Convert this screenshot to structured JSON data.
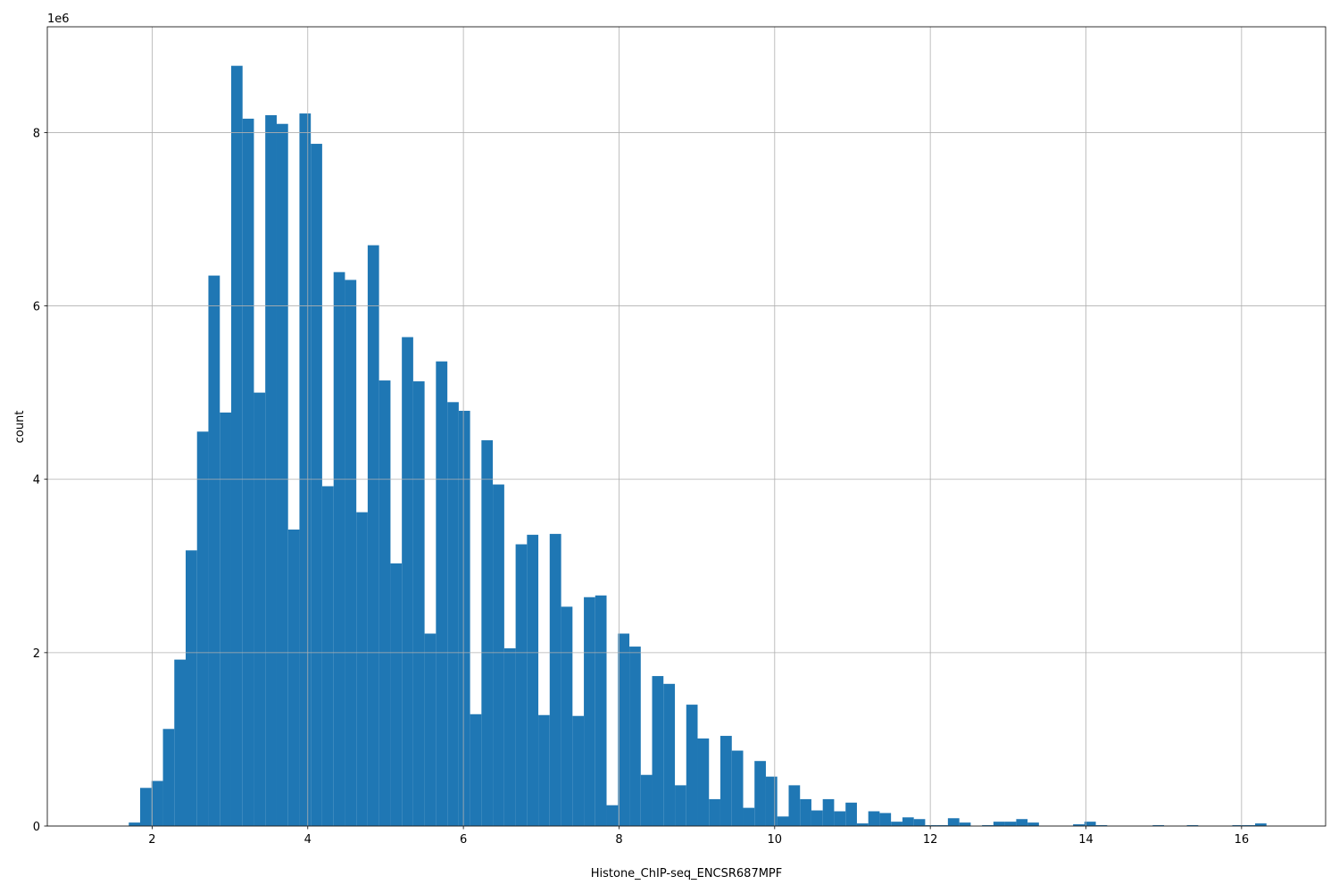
{
  "chart_data": {
    "type": "histogram",
    "x_label": "Histone_ChIP-seq_ENCSR687MPF",
    "y_label": "count",
    "y_offset_label": "1e6",
    "color": "#1f77b4",
    "grid": true,
    "xlim": [
      0.653,
      17.08
    ],
    "ylim": [
      0,
      9.22
    ],
    "xticks": [
      2,
      4,
      6,
      8,
      10,
      12,
      14,
      16
    ],
    "yticks": [
      0,
      2,
      4,
      6,
      8
    ],
    "bins": [
      1.7,
      1.846,
      1.992,
      2.139,
      2.285,
      2.431,
      2.577,
      2.723,
      2.87,
      3.016,
      3.162,
      3.308,
      3.454,
      3.601,
      3.747,
      3.893,
      4.039,
      4.185,
      4.332,
      4.478,
      4.624,
      4.77,
      4.916,
      5.063,
      5.209,
      5.355,
      5.501,
      5.647,
      5.794,
      5.94,
      6.086,
      6.232,
      6.378,
      6.525,
      6.671,
      6.817,
      6.963,
      7.109,
      7.256,
      7.402,
      7.548,
      7.694,
      7.84,
      7.987,
      8.133,
      8.279,
      8.425,
      8.571,
      8.718,
      8.864,
      9.01,
      9.156,
      9.302,
      9.449,
      9.595,
      9.741,
      9.887,
      10.033,
      10.18,
      10.326,
      10.472,
      10.618,
      10.764,
      10.911,
      11.057,
      11.203,
      11.349,
      11.495,
      11.642,
      11.788,
      11.934,
      12.08,
      12.226,
      12.373,
      12.519,
      12.665,
      12.811,
      12.957,
      13.104,
      13.25,
      13.396,
      13.542,
      13.688,
      13.835,
      13.981,
      14.127,
      14.273,
      14.419,
      14.566,
      14.712,
      14.858,
      15.004,
      15.15,
      15.297,
      15.443,
      15.589,
      15.735,
      15.881,
      16.028,
      16.174,
      16.32
    ],
    "counts": [
      0.04,
      0.44,
      0.52,
      1.12,
      1.92,
      3.18,
      4.55,
      6.35,
      4.77,
      8.77,
      8.16,
      5.0,
      8.2,
      8.1,
      3.42,
      8.22,
      7.87,
      3.92,
      6.39,
      6.3,
      3.62,
      6.7,
      5.14,
      3.03,
      5.64,
      5.13,
      2.22,
      5.36,
      4.89,
      4.79,
      1.29,
      4.45,
      3.94,
      2.05,
      3.25,
      3.36,
      1.28,
      3.37,
      2.53,
      1.27,
      2.64,
      2.66,
      0.24,
      2.22,
      2.07,
      0.59,
      1.73,
      1.64,
      0.47,
      1.4,
      1.01,
      0.31,
      1.04,
      0.87,
      0.21,
      0.75,
      0.57,
      0.11,
      0.47,
      0.31,
      0.18,
      0.31,
      0.17,
      0.27,
      0.03,
      0.17,
      0.15,
      0.05,
      0.1,
      0.08,
      0.01,
      0.01,
      0.09,
      0.04,
      0,
      0.01,
      0.05,
      0.05,
      0.08,
      0.04,
      0,
      0,
      0,
      0.02,
      0.05,
      0.01,
      0,
      0,
      0,
      0,
      0.01,
      0,
      0,
      0.01,
      0,
      0,
      0,
      0.01,
      0.01,
      0.03
    ]
  }
}
